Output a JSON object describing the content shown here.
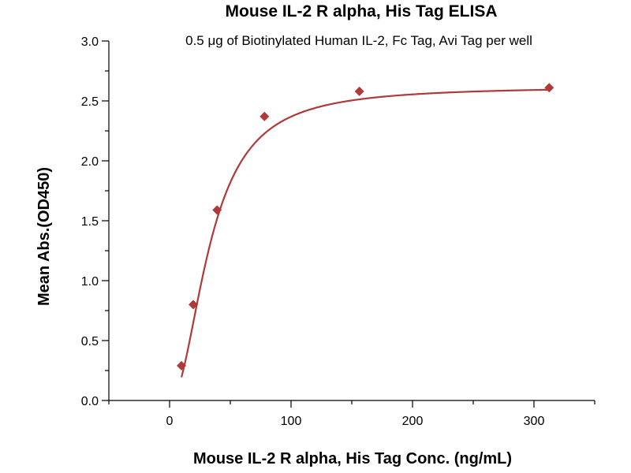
{
  "chart_data": {
    "type": "scatter",
    "title": "Mouse IL-2 R alpha, His Tag ELISA",
    "subtitle": "0.5 μg of Biotinylated Human IL-2, Fc Tag, Avi Tag per well",
    "xlabel": "Mouse IL-2 R alpha, His Tag Conc. (ng/mL)",
    "ylabel": "Mean Abs.(OD450)",
    "xlim": [
      -50,
      350
    ],
    "ylim": [
      0,
      3.0
    ],
    "x_ticks": [
      0,
      100,
      200,
      300
    ],
    "y_ticks": [
      0.0,
      0.5,
      1.0,
      1.5,
      2.0,
      2.5,
      3.0
    ],
    "y_tick_labels": [
      "0.0",
      "0.5",
      "1.0",
      "1.5",
      "2.0",
      "2.5",
      "3.0"
    ],
    "grid": false,
    "legend": "none",
    "series": [
      {
        "x": [
          9.77,
          19.5,
          39.1,
          78.1,
          156.25,
          312.5
        ],
        "y": [
          0.29,
          0.8,
          1.59,
          2.37,
          2.58,
          2.61
        ],
        "fit": "four-parameter-logistic"
      }
    ],
    "colors": {
      "marker": "#b03a3a",
      "curve": "#b03a3a",
      "axis": "#000000"
    }
  }
}
